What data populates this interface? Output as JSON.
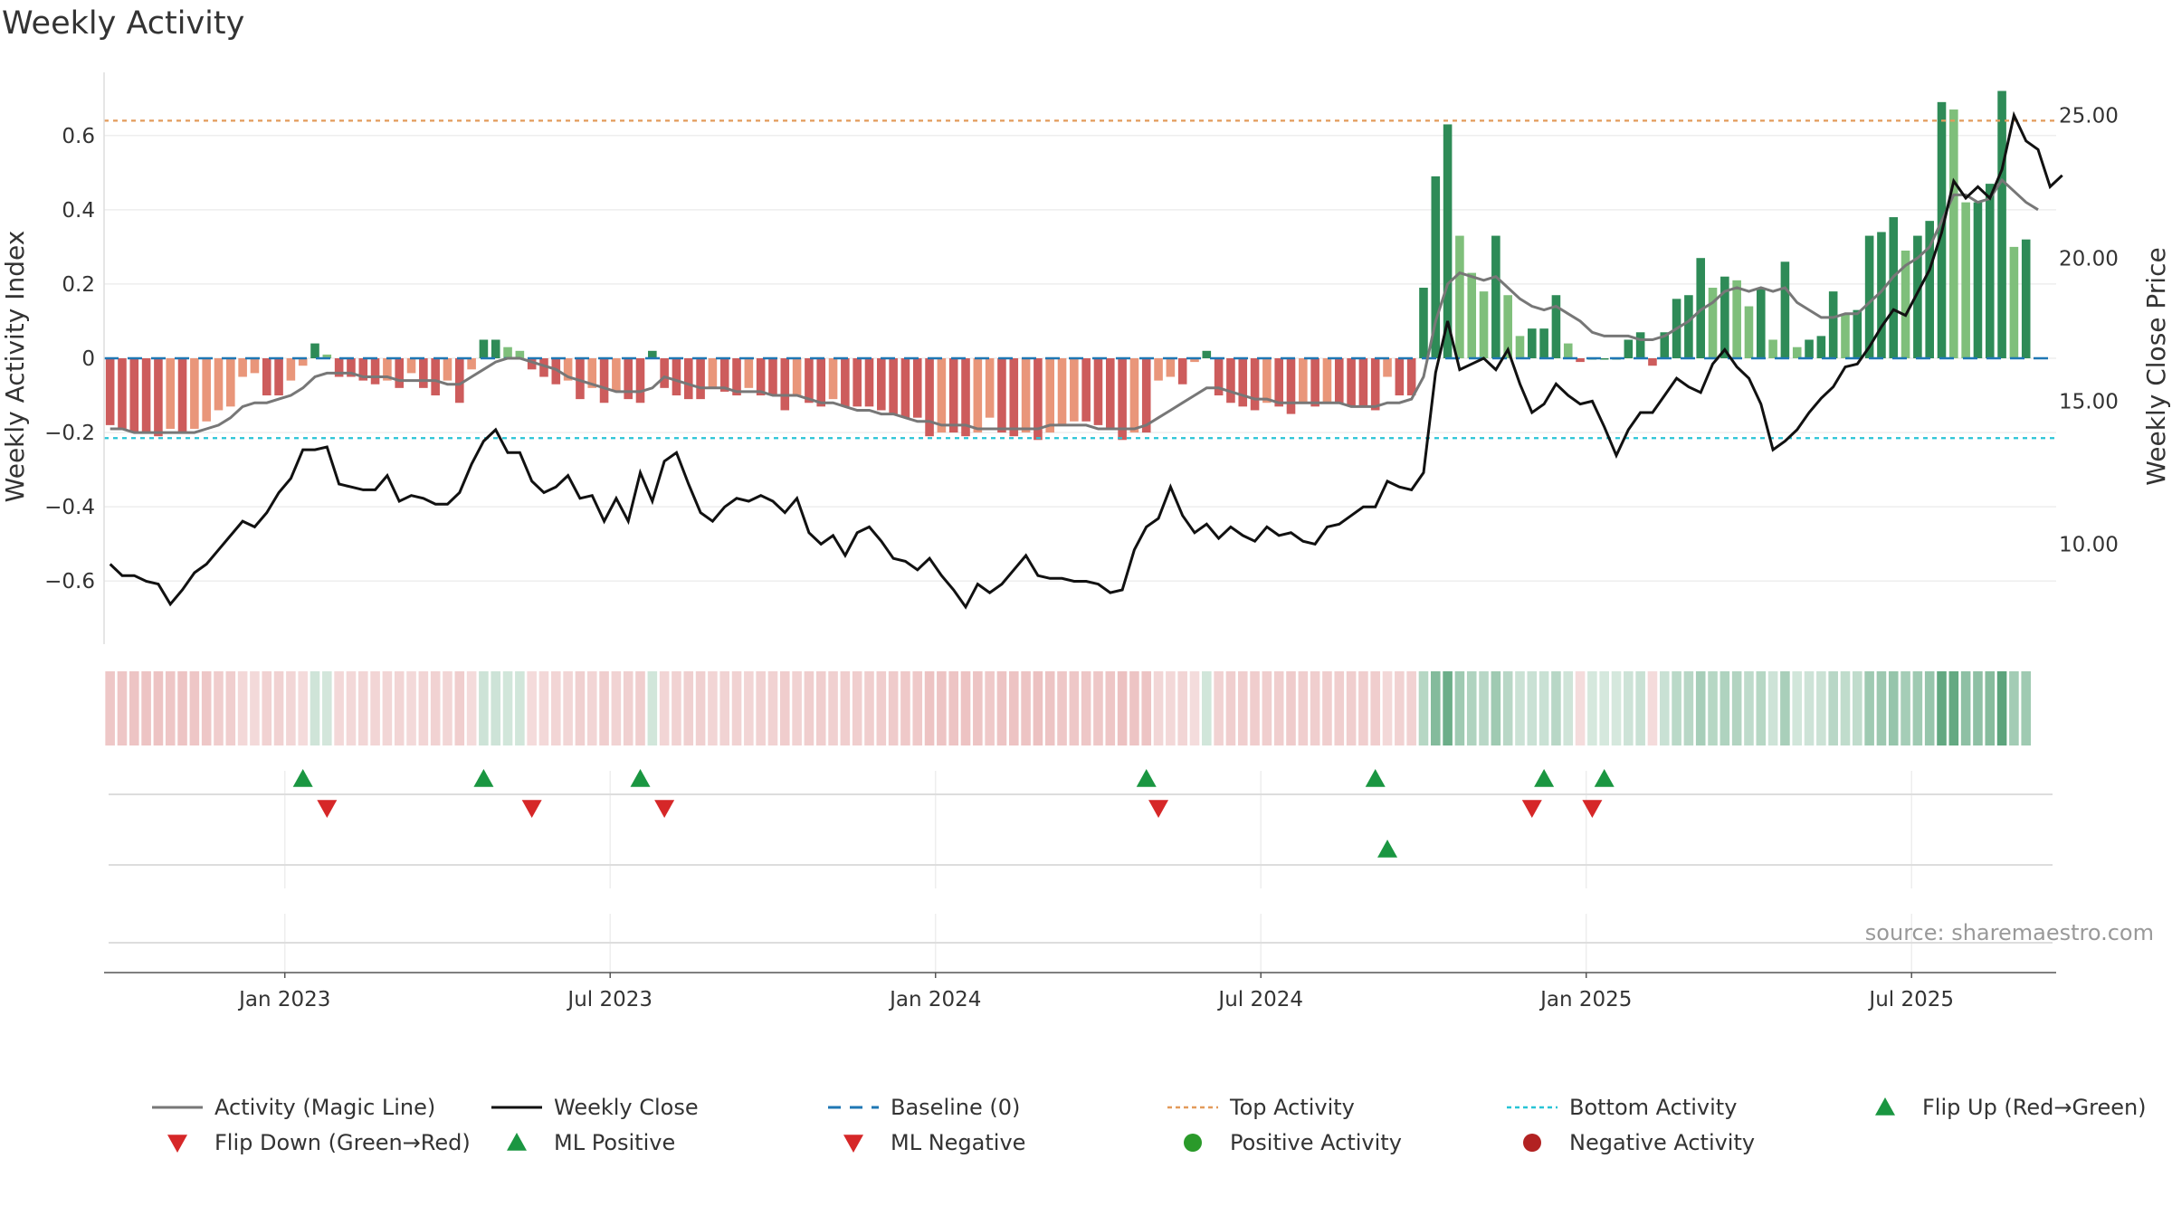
{
  "chart_data": {
    "type": "bar",
    "title": "Weekly Activity",
    "source": "source: sharemaestro.com",
    "ylabel_left": "Weekly Activity Index",
    "ylabel_right": "Weekly Close Price",
    "left_axis": {
      "range": [
        -0.77,
        0.77
      ],
      "ticks": [
        0.6,
        0.4,
        0.2,
        0,
        -0.2,
        -0.4,
        -0.6
      ],
      "tick_labels": [
        "0.6",
        "0.4",
        "0.2",
        "0",
        "−0.2",
        "−0.4",
        "−0.6"
      ]
    },
    "right_axis": {
      "range": [
        6.5,
        26.5
      ],
      "ticks": [
        25,
        20,
        15,
        10
      ],
      "tick_labels": [
        "25.00",
        "20.00",
        "15.00",
        "10.00"
      ]
    },
    "x_axis": {
      "range": [
        0,
        162
      ],
      "tick_positions": [
        15,
        42,
        69,
        96,
        123,
        150
      ],
      "tick_labels": [
        "Jan 2023",
        "Jul 2023",
        "Jan 2024",
        "Jul 2024",
        "Jan 2025",
        "Jul 2025"
      ]
    },
    "reference_lines": {
      "top_activity": 0.64,
      "bottom_activity": -0.215,
      "baseline": 0
    },
    "activity": [
      -0.18,
      -0.19,
      -0.2,
      -0.2,
      -0.21,
      -0.19,
      -0.2,
      -0.19,
      -0.17,
      -0.14,
      -0.13,
      -0.05,
      -0.04,
      -0.1,
      -0.1,
      -0.06,
      -0.02,
      0.04,
      0.01,
      -0.05,
      -0.05,
      -0.06,
      -0.07,
      -0.06,
      -0.08,
      -0.04,
      -0.08,
      -0.1,
      -0.06,
      -0.12,
      -0.03,
      0.05,
      0.05,
      0.03,
      0.02,
      -0.03,
      -0.05,
      -0.07,
      -0.06,
      -0.11,
      -0.08,
      -0.12,
      -0.09,
      -0.11,
      -0.12,
      0.02,
      -0.08,
      -0.1,
      -0.11,
      -0.11,
      -0.08,
      -0.09,
      -0.1,
      -0.08,
      -0.1,
      -0.1,
      -0.14,
      -0.1,
      -0.12,
      -0.13,
      -0.11,
      -0.13,
      -0.13,
      -0.13,
      -0.14,
      -0.15,
      -0.16,
      -0.16,
      -0.21,
      -0.2,
      -0.2,
      -0.21,
      -0.2,
      -0.16,
      -0.2,
      -0.21,
      -0.2,
      -0.22,
      -0.2,
      -0.18,
      -0.17,
      -0.17,
      -0.18,
      -0.19,
      -0.22,
      -0.2,
      -0.2,
      -0.06,
      -0.05,
      -0.07,
      -0.01,
      0.02,
      -0.1,
      -0.12,
      -0.13,
      -0.14,
      -0.12,
      -0.13,
      -0.15,
      -0.12,
      -0.13,
      -0.12,
      -0.12,
      -0.13,
      -0.13,
      -0.14,
      -0.05,
      -0.1,
      -0.1,
      0.19,
      0.49,
      0.63,
      0.33,
      0.23,
      0.18,
      0.33,
      0.17,
      0.06,
      0.08,
      0.08,
      0.17,
      0.04,
      -0.01,
      0.0,
      0.0,
      0.0,
      0.05,
      0.07,
      -0.02,
      0.07,
      0.16,
      0.17,
      0.27,
      0.19,
      0.22,
      0.21,
      0.14,
      0.19,
      0.05,
      0.26,
      0.03,
      0.05,
      0.06,
      0.18,
      0.12,
      0.13,
      0.33,
      0.34,
      0.38,
      0.29,
      0.33,
      0.37,
      0.69,
      0.67,
      0.42,
      0.42,
      0.47,
      0.72,
      0.3,
      0.32
    ],
    "magic_line": [
      -0.19,
      -0.19,
      -0.2,
      -0.2,
      -0.2,
      -0.2,
      -0.2,
      -0.2,
      -0.19,
      -0.18,
      -0.16,
      -0.13,
      -0.12,
      -0.12,
      -0.11,
      -0.1,
      -0.08,
      -0.05,
      -0.04,
      -0.04,
      -0.04,
      -0.05,
      -0.05,
      -0.05,
      -0.06,
      -0.06,
      -0.06,
      -0.06,
      -0.07,
      -0.07,
      -0.05,
      -0.03,
      -0.01,
      0.0,
      0.0,
      -0.01,
      -0.02,
      -0.03,
      -0.05,
      -0.06,
      -0.07,
      -0.08,
      -0.09,
      -0.09,
      -0.09,
      -0.08,
      -0.05,
      -0.06,
      -0.07,
      -0.08,
      -0.08,
      -0.08,
      -0.09,
      -0.09,
      -0.09,
      -0.1,
      -0.1,
      -0.1,
      -0.11,
      -0.12,
      -0.12,
      -0.13,
      -0.14,
      -0.14,
      -0.15,
      -0.15,
      -0.16,
      -0.17,
      -0.17,
      -0.18,
      -0.18,
      -0.18,
      -0.19,
      -0.19,
      -0.19,
      -0.19,
      -0.19,
      -0.19,
      -0.18,
      -0.18,
      -0.18,
      -0.18,
      -0.19,
      -0.19,
      -0.19,
      -0.19,
      -0.18,
      -0.16,
      -0.14,
      -0.12,
      -0.1,
      -0.08,
      -0.08,
      -0.09,
      -0.1,
      -0.11,
      -0.11,
      -0.12,
      -0.12,
      -0.12,
      -0.12,
      -0.12,
      -0.12,
      -0.13,
      -0.13,
      -0.13,
      -0.12,
      -0.12,
      -0.11,
      -0.05,
      0.1,
      0.2,
      0.23,
      0.22,
      0.21,
      0.22,
      0.19,
      0.16,
      0.14,
      0.13,
      0.14,
      0.12,
      0.1,
      0.07,
      0.06,
      0.06,
      0.06,
      0.05,
      0.05,
      0.06,
      0.08,
      0.1,
      0.13,
      0.15,
      0.18,
      0.19,
      0.18,
      0.19,
      0.18,
      0.19,
      0.15,
      0.13,
      0.11,
      0.11,
      0.12,
      0.12,
      0.15,
      0.18,
      0.22,
      0.25,
      0.27,
      0.3,
      0.37,
      0.44,
      0.44,
      0.42,
      0.43,
      0.48,
      0.45,
      0.42,
      0.4
    ],
    "weekly_close": [
      9.3,
      8.9,
      8.9,
      8.7,
      8.6,
      7.9,
      8.4,
      9.0,
      9.3,
      9.8,
      10.3,
      10.8,
      10.6,
      11.1,
      11.8,
      12.3,
      13.3,
      13.3,
      13.4,
      12.1,
      12.0,
      11.9,
      11.9,
      12.4,
      11.5,
      11.7,
      11.6,
      11.4,
      11.4,
      11.8,
      12.8,
      13.6,
      14.0,
      13.2,
      13.2,
      12.2,
      11.8,
      12.0,
      12.4,
      11.6,
      11.7,
      10.8,
      11.6,
      10.8,
      12.5,
      11.5,
      12.9,
      13.2,
      12.1,
      11.1,
      10.8,
      11.3,
      11.6,
      11.5,
      11.7,
      11.5,
      11.1,
      11.6,
      10.4,
      10.0,
      10.3,
      9.6,
      10.4,
      10.6,
      10.1,
      9.5,
      9.4,
      9.1,
      9.5,
      8.9,
      8.4,
      7.8,
      8.6,
      8.3,
      8.6,
      9.1,
      9.6,
      8.9,
      8.8,
      8.8,
      8.7,
      8.7,
      8.6,
      8.3,
      8.4,
      9.8,
      10.6,
      10.9,
      12.0,
      11.0,
      10.4,
      10.7,
      10.2,
      10.6,
      10.3,
      10.1,
      10.6,
      10.3,
      10.4,
      10.1,
      10.0,
      10.6,
      10.7,
      11.0,
      11.3,
      11.3,
      12.2,
      12.0,
      11.9,
      12.5,
      16.0,
      17.8,
      16.1,
      16.3,
      16.5,
      16.1,
      16.8,
      15.6,
      14.6,
      14.9,
      15.6,
      15.2,
      14.9,
      15.0,
      14.1,
      13.1,
      14.0,
      14.6,
      14.6,
      15.2,
      15.8,
      15.5,
      15.3,
      16.3,
      16.8,
      16.2,
      15.8,
      14.9,
      13.3,
      13.6,
      14.0,
      14.6,
      15.1,
      15.5,
      16.2,
      16.3,
      16.9,
      17.6,
      18.2,
      18.0,
      18.8,
      19.6,
      20.9,
      22.7,
      22.1,
      22.5,
      22.1,
      23.1,
      25.0,
      24.1,
      23.8,
      22.5,
      22.9
    ],
    "signals": {
      "flip_up": [
        16,
        31,
        44,
        86,
        105,
        119,
        124
      ],
      "flip_down": [
        18,
        35,
        46,
        87,
        118,
        123
      ],
      "ml_positive": [
        106
      ],
      "ml_negative": []
    },
    "legend": {
      "magic_line": "Activity (Magic Line)",
      "weekly_close": "Weekly Close",
      "baseline": "Baseline (0)",
      "top_activity": "Top Activity",
      "bottom_activity": "Bottom Activity",
      "flip_up": "Flip Up (Red→Green)",
      "flip_down": "Flip Down (Green→Red)",
      "ml_positive": "ML Positive",
      "ml_negative": "ML Negative",
      "positive_activity": "Positive Activity",
      "negative_activity": "Negative Activity"
    }
  },
  "colors": {
    "green_strong": "#2e8b57",
    "green_light": "#7fbf7b",
    "red_strong": "#cd5c5c",
    "red_light": "#e9967a",
    "magic_line": "#777777",
    "close_line": "#111111",
    "baseline": "#1f77b4",
    "top_activity": "#e39b5b",
    "bottom_activity": "#28c4d6",
    "signal_green": "#1a9641",
    "signal_red": "#d62728",
    "positive_dot": "#2a9a2a",
    "negative_dot": "#b22222"
  }
}
